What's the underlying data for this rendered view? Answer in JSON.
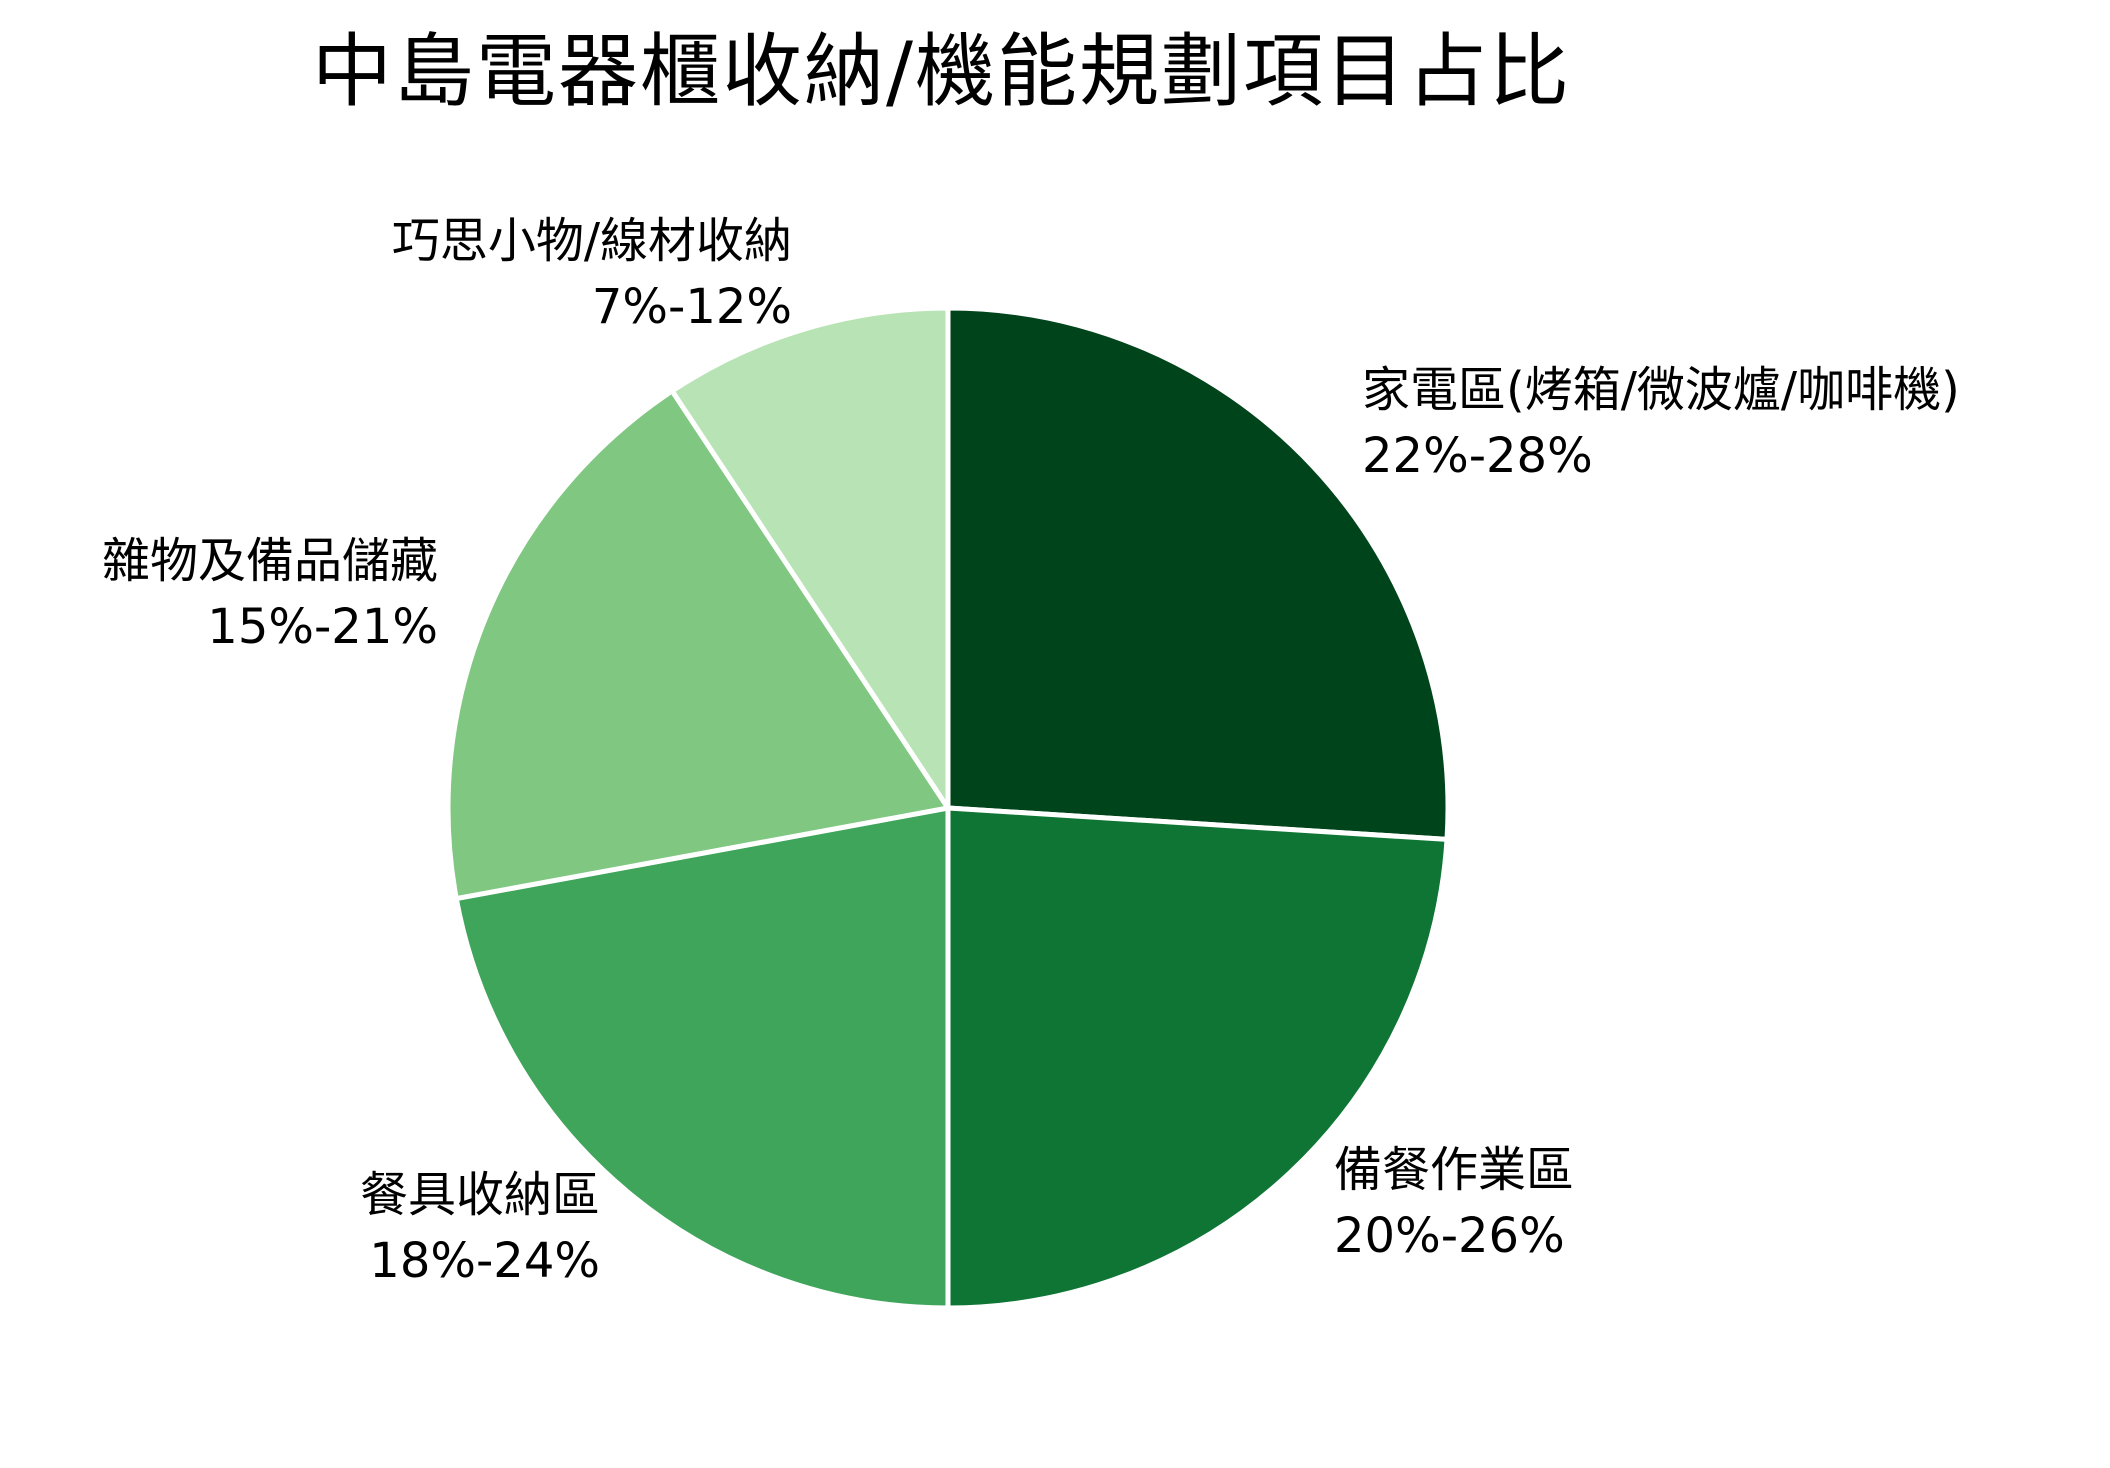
{
  "chart_data": {
    "type": "pie",
    "title": "中島電器櫃收納/機能規劃項目占比",
    "start_angle_deg": 0,
    "direction": "clockwise",
    "slices": [
      {
        "label": "家電區(烤箱/微波爐/咖啡機)",
        "range": "22%-28%",
        "value": 26.0,
        "color": "#00441b"
      },
      {
        "label": "備餐作業區",
        "range": "20%-26%",
        "value": 24.0,
        "color": "#0e7535"
      },
      {
        "label": "餐具收納區",
        "range": "18%-24%",
        "value": 22.1,
        "color": "#3fa55b"
      },
      {
        "label": "雜物及備品儲藏",
        "range": "15%-21%",
        "value": 18.6,
        "color": "#80c781"
      },
      {
        "label": "巧思小物/線材收納",
        "range": "7%-12%",
        "value": 9.3,
        "color": "#b8e3b4"
      }
    ],
    "labels": [
      "家電區(烤箱/微波爐/咖啡機)",
      "備餐作業區",
      "餐具收納區",
      "雜物及備品儲藏",
      "巧思小物/線材收納"
    ],
    "values": [
      26.0,
      24.0,
      22.1,
      18.6,
      9.3
    ],
    "legend": "none (labels placed outside slices)",
    "slice_border_color": "#ffffff"
  }
}
